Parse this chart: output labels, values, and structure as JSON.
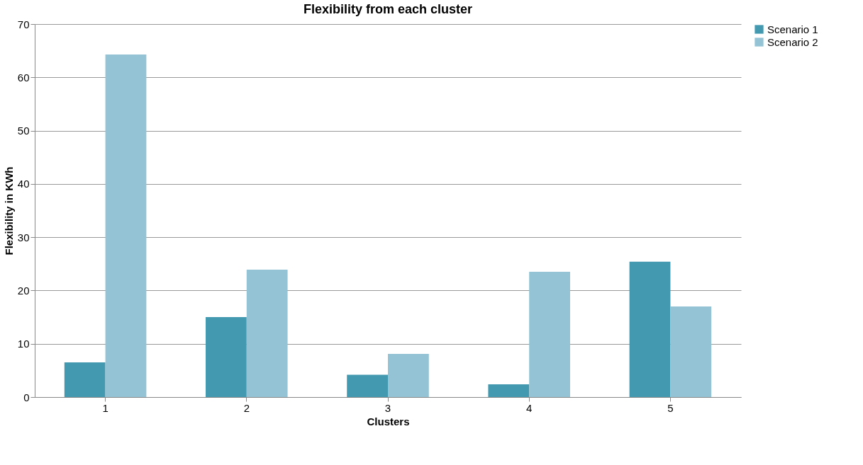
{
  "chart_data": {
    "type": "bar",
    "title": "Flexibility from each cluster",
    "xlabel": "Clusters",
    "ylabel": "Flexibility in KWh",
    "categories": [
      "1",
      "2",
      "3",
      "4",
      "5"
    ],
    "series": [
      {
        "name": "Scenario 1",
        "color": "#4299b0",
        "values": [
          6.5,
          15.0,
          4.2,
          2.4,
          25.4
        ]
      },
      {
        "name": "Scenario 2",
        "color": "#93c3d4",
        "values": [
          64.3,
          23.9,
          8.1,
          23.5,
          17.0
        ]
      }
    ],
    "ylim": [
      0,
      70
    ],
    "yticks": [
      0,
      10,
      20,
      30,
      40,
      50,
      60,
      70
    ],
    "grid": "y",
    "legend": "right"
  }
}
